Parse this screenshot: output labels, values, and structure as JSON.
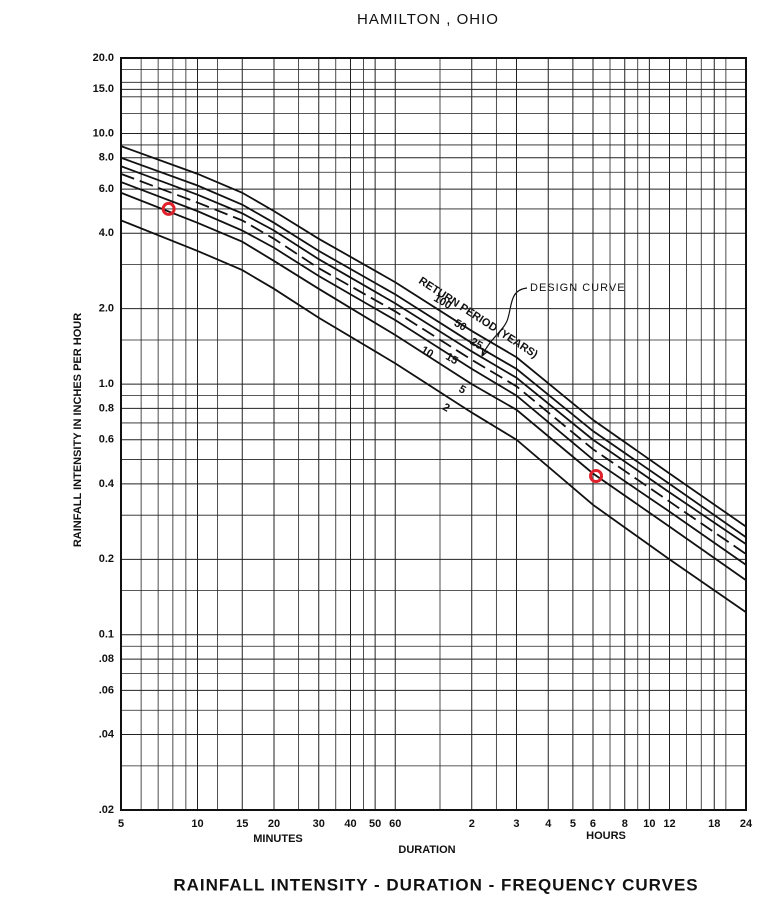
{
  "chart_data": {
    "type": "line",
    "title": "HAMILTON , OHIO",
    "caption": "RAINFALL INTENSITY - DURATION - FREQUENCY CURVES",
    "x_label": "DURATION",
    "x_sublabels": [
      "MINUTES",
      "HOURS"
    ],
    "y_label": "RAINFALL INTENSITY IN INCHES PER HOUR",
    "annotations": [
      "RETURN PERIOD (YEARS)",
      "DESIGN CURVE"
    ],
    "xscale": "log",
    "yscale": "log",
    "grid": true,
    "x": [
      5,
      10,
      15,
      20,
      30,
      60,
      120,
      180,
      360,
      720,
      1440
    ],
    "xlim": [
      5,
      1440
    ],
    "ylim": [
      0.02,
      20
    ],
    "xticks": [
      5,
      10,
      15,
      20,
      30,
      40,
      50,
      60,
      {
        "value": 120,
        "label": "2"
      },
      {
        "value": 180,
        "label": "3"
      },
      {
        "value": 240,
        "label": "4"
      },
      {
        "value": 300,
        "label": "5"
      },
      {
        "value": 360,
        "label": "6"
      },
      {
        "value": 480,
        "label": "8"
      },
      {
        "value": 600,
        "label": "10"
      },
      {
        "value": 720,
        "label": "12"
      },
      {
        "value": 1080,
        "label": "18"
      },
      {
        "value": 1440,
        "label": "24"
      }
    ],
    "yticks": [
      {
        "value": 20,
        "label": "20.0"
      },
      {
        "value": 15,
        "label": "15.0"
      },
      {
        "value": 10,
        "label": "10.0"
      },
      {
        "value": 8,
        "label": "8.0"
      },
      {
        "value": 6,
        "label": "6.0"
      },
      {
        "value": 4,
        "label": "4.0"
      },
      {
        "value": 2,
        "label": "2.0"
      },
      {
        "value": 1,
        "label": "1.0"
      },
      0.8,
      0.6,
      0.4,
      0.2,
      0.1,
      {
        "value": 0.08,
        "label": ".08"
      },
      {
        "value": 0.06,
        "label": ".06"
      },
      {
        "value": 0.04,
        "label": ".04"
      },
      {
        "value": 0.02,
        "label": ".02"
      }
    ],
    "minor_xticks": [
      6,
      7,
      8,
      9,
      12,
      25,
      35,
      45,
      90,
      150,
      420,
      540,
      840,
      960,
      1200
    ],
    "minor_yticks": [
      18,
      16,
      14,
      12,
      9,
      7,
      5,
      3,
      1.5,
      0.9,
      0.7,
      0.5,
      0.3,
      0.15,
      0.09,
      0.07,
      0.05,
      0.03
    ],
    "series": [
      {
        "name": "2",
        "color": "#111111",
        "dashed": false,
        "values": [
          4.5,
          3.4,
          2.85,
          2.4,
          1.84,
          1.21,
          0.77,
          0.6,
          0.33,
          0.2,
          0.123
        ]
      },
      {
        "name": "5",
        "color": "#111111",
        "dashed": false,
        "values": [
          5.8,
          4.4,
          3.7,
          3.1,
          2.4,
          1.57,
          1.0,
          0.79,
          0.44,
          0.27,
          0.165
        ]
      },
      {
        "name": "10",
        "color": "#111111",
        "dashed": false,
        "values": [
          6.4,
          4.9,
          4.1,
          3.5,
          2.7,
          1.8,
          1.15,
          0.9,
          0.5,
          0.31,
          0.19
        ]
      },
      {
        "name": "15",
        "color": "#111111",
        "dashed": true,
        "values": [
          6.9,
          5.3,
          4.5,
          3.8,
          2.9,
          1.95,
          1.25,
          0.98,
          0.55,
          0.34,
          0.21
        ]
      },
      {
        "name": "25",
        "color": "#111111",
        "dashed": false,
        "values": [
          7.4,
          5.7,
          4.8,
          4.1,
          3.15,
          2.1,
          1.35,
          1.06,
          0.6,
          0.37,
          0.23
        ]
      },
      {
        "name": "50",
        "color": "#111111",
        "dashed": false,
        "values": [
          8.0,
          6.2,
          5.2,
          4.4,
          3.4,
          2.28,
          1.46,
          1.15,
          0.65,
          0.4,
          0.245
        ]
      },
      {
        "name": "100",
        "color": "#111111",
        "dashed": false,
        "values": [
          8.9,
          6.9,
          5.8,
          4.9,
          3.8,
          2.55,
          1.63,
          1.28,
          0.72,
          0.44,
          0.27
        ]
      }
    ],
    "highlighted_points": [
      {
        "x": 7.7,
        "y": 5.0
      },
      {
        "x": 370,
        "y": 0.43
      }
    ],
    "highlight_color": "#e0202a"
  }
}
